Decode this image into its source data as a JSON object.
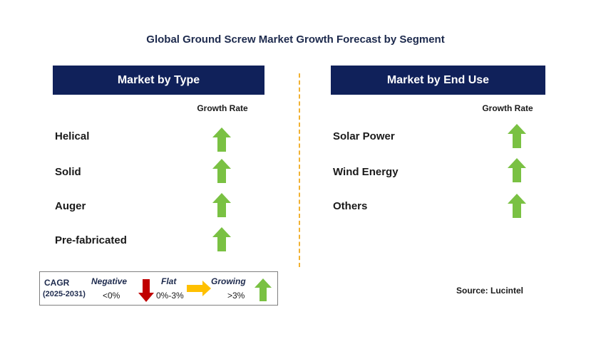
{
  "title": "Global Ground Screw Market Growth Forecast by Segment",
  "left_panel": {
    "header": "Market by Type",
    "growth_label": "Growth Rate",
    "rows": [
      {
        "label": "Helical",
        "trend": "growing"
      },
      {
        "label": "Solid",
        "trend": "growing"
      },
      {
        "label": "Auger",
        "trend": "growing"
      },
      {
        "label": "Pre-fabricated",
        "trend": "growing"
      }
    ]
  },
  "right_panel": {
    "header": "Market by End Use",
    "growth_label": "Growth Rate",
    "rows": [
      {
        "label": "Solar Power",
        "trend": "growing"
      },
      {
        "label": "Wind Energy",
        "trend": "growing"
      },
      {
        "label": "Others",
        "trend": "growing"
      }
    ]
  },
  "legend": {
    "cagr_label": "CAGR",
    "period": "(2025-2031)",
    "negative_label": "Negative",
    "negative_range": "<0%",
    "flat_label": "Flat",
    "flat_range": "0%-3%",
    "growing_label": "Growing",
    "growing_range": ">3%"
  },
  "source": "Source: Lucintel",
  "colors": {
    "header_bg": "#10215a",
    "growing_arrow": "#7ac143",
    "negative_arrow": "#c00000",
    "flat_arrow": "#ffc000",
    "divider": "#f2b233"
  }
}
